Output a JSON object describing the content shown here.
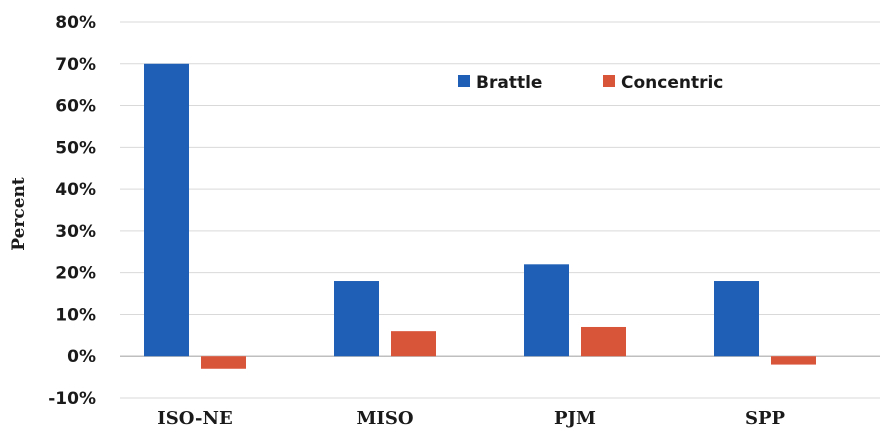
{
  "chart_data": {
    "type": "bar",
    "title": "",
    "xlabel": "",
    "ylabel": "Percent",
    "categories": [
      "ISO-NE",
      "MISO",
      "PJM",
      "SPP"
    ],
    "series": [
      {
        "name": "Brattle",
        "color": "#1f5fb5",
        "values": [
          70,
          18,
          22,
          18
        ]
      },
      {
        "name": "Concentric",
        "color": "#d9553a",
        "values": [
          -3,
          6,
          7,
          -2
        ]
      }
    ],
    "ylim": [
      -10,
      80
    ],
    "yticks": [
      "-10%",
      "0%",
      "10%",
      "20%",
      "30%",
      "40%",
      "50%",
      "60%",
      "70%",
      "80%"
    ],
    "grid": true,
    "legend_position": "top-right"
  }
}
